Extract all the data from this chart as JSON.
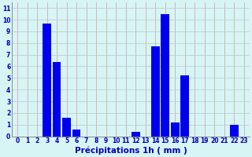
{
  "hours": [
    0,
    1,
    2,
    3,
    4,
    5,
    6,
    7,
    8,
    9,
    10,
    11,
    12,
    13,
    14,
    15,
    16,
    17,
    18,
    19,
    20,
    21,
    22,
    23
  ],
  "values": [
    0,
    0,
    0,
    9.7,
    6.4,
    1.6,
    0.55,
    0,
    0,
    0,
    0,
    0,
    0.4,
    0,
    7.7,
    10.5,
    1.2,
    5.2,
    0,
    0,
    0,
    0,
    1.0,
    0
  ],
  "bar_color": "#0000ee",
  "background_color": "#d8f5f5",
  "grid_color": "#b8c8c8",
  "grid_color_x": "#c8a0a0",
  "ylabel_values": [
    0,
    1,
    2,
    3,
    4,
    5,
    6,
    7,
    8,
    9,
    10,
    11
  ],
  "ylim": [
    0,
    11.5
  ],
  "xlabel": "Précipitations 1h ( mm )",
  "xlabel_color": "#0000bb",
  "tick_color": "#0000bb",
  "tick_fontsize": 5.5,
  "xlabel_fontsize": 7.5
}
